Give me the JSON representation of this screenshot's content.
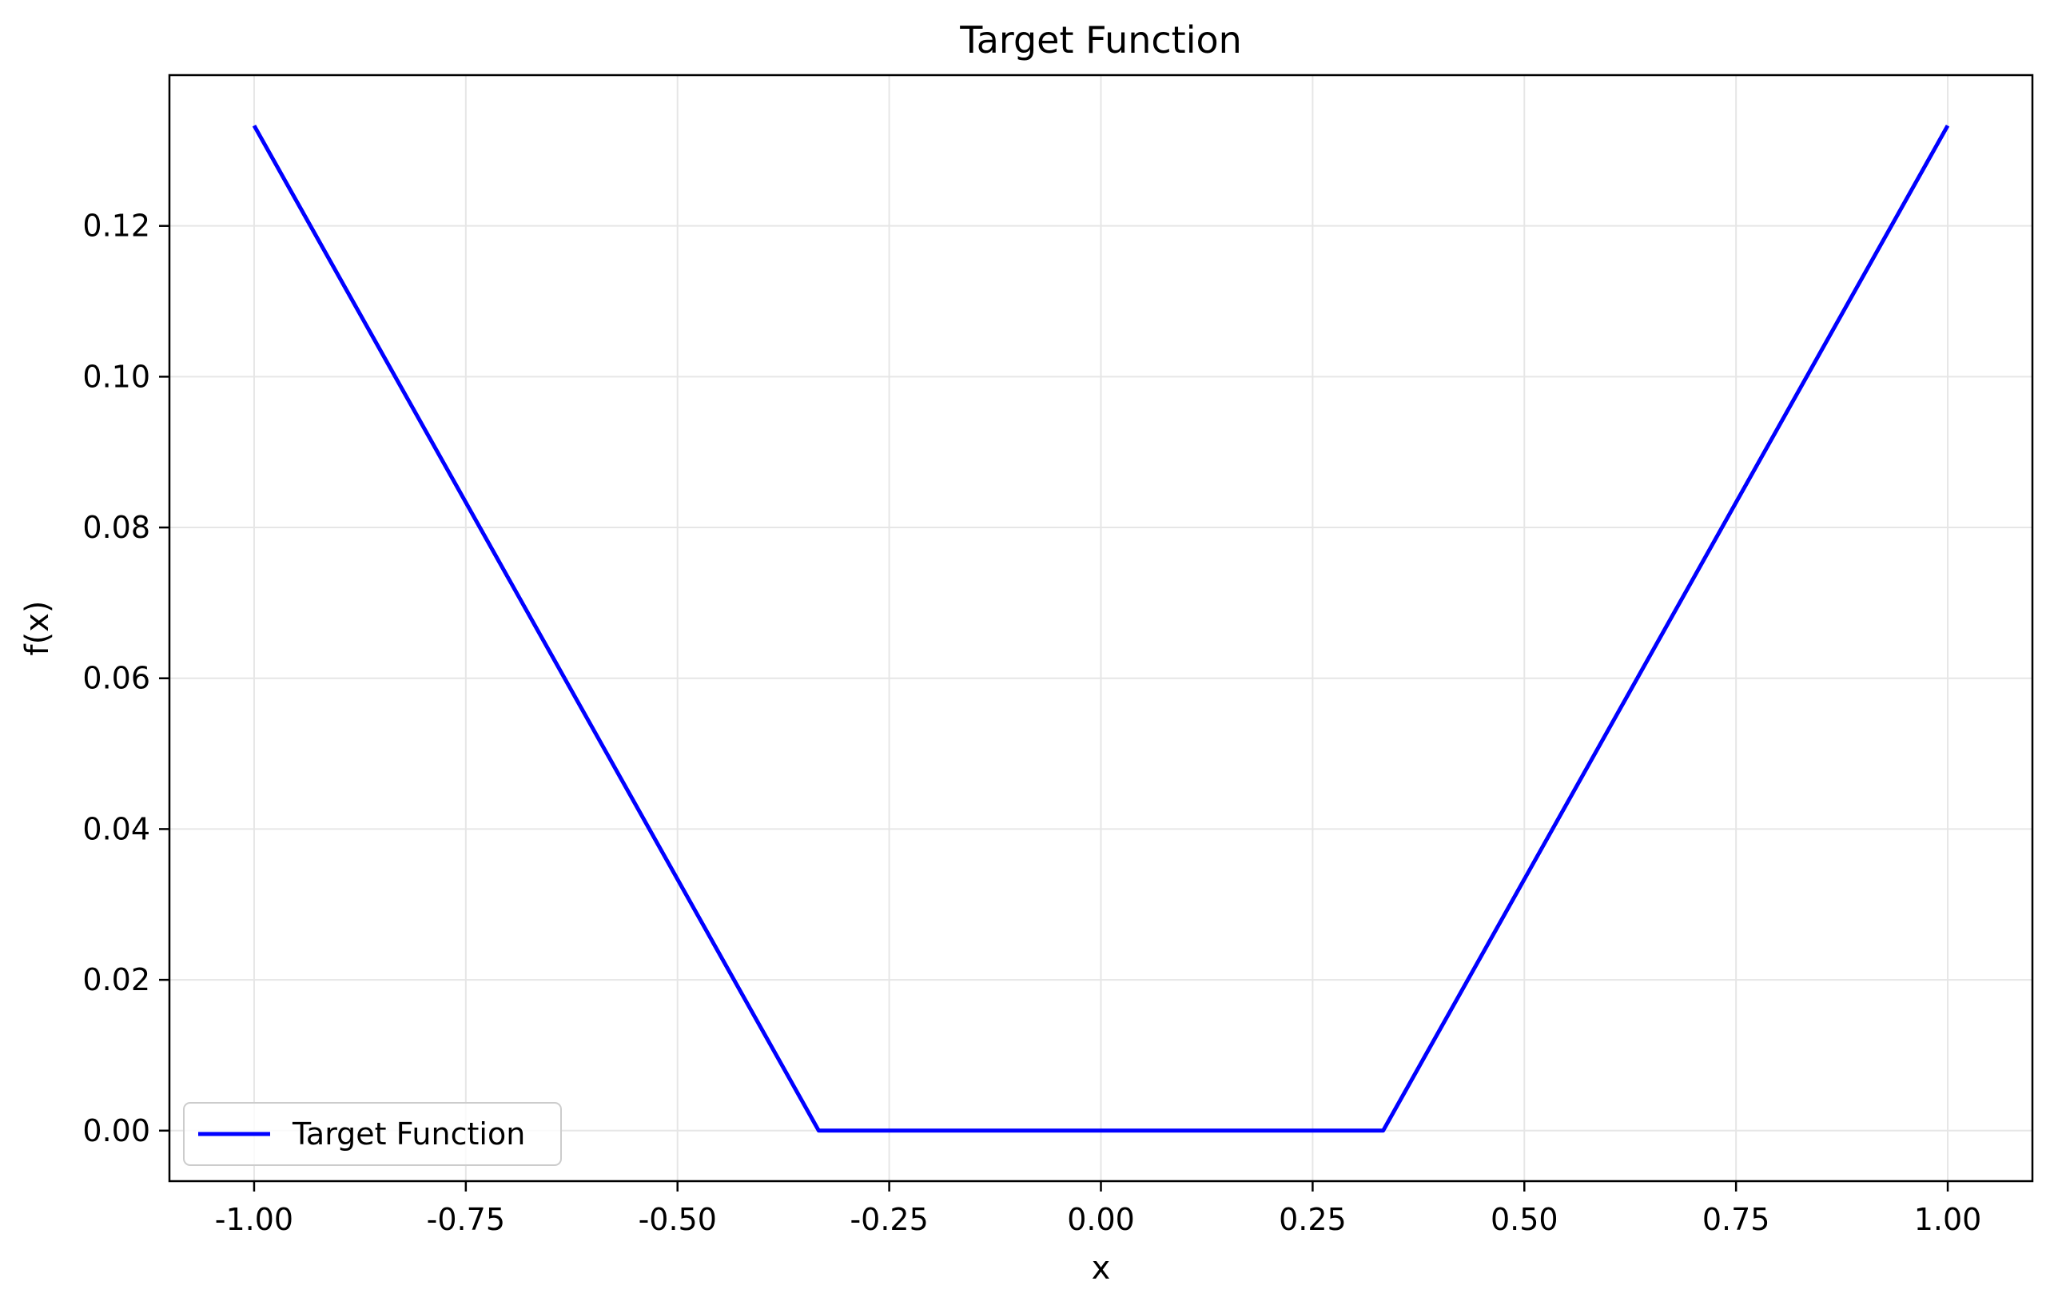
{
  "chart_data": {
    "type": "line",
    "title": "Target Function",
    "xlabel": "x",
    "ylabel": "f(x)",
    "xlim": [
      -1.1,
      1.1
    ],
    "ylim": [
      -0.0067,
      0.14
    ],
    "grid": true,
    "legend": {
      "placement": "lower-left"
    },
    "x_ticks": [
      -1.0,
      -0.75,
      -0.5,
      -0.25,
      0.0,
      0.25,
      0.5,
      0.75,
      1.0
    ],
    "x_tick_labels": [
      "-1.00",
      "-0.75",
      "-0.50",
      "-0.25",
      "0.00",
      "0.25",
      "0.50",
      "0.75",
      "1.00"
    ],
    "y_ticks": [
      0.0,
      0.02,
      0.04,
      0.06,
      0.08,
      0.1,
      0.12
    ],
    "y_tick_labels": [
      "0.00",
      "0.02",
      "0.04",
      "0.06",
      "0.08",
      "0.10",
      "0.12"
    ],
    "series": [
      {
        "name": "Target Function",
        "color": "#0000ff",
        "x": [
          -1.0,
          -0.3333,
          0.3333,
          1.0
        ],
        "y": [
          0.1333,
          0.0,
          0.0,
          0.1333
        ]
      }
    ]
  },
  "colors": {
    "grid": "#e6e6e6",
    "axes": "#000000",
    "background": "#ffffff"
  }
}
